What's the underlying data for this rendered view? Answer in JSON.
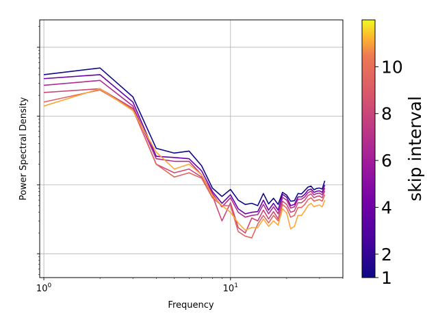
{
  "chart_data": {
    "type": "line",
    "title": "",
    "xlabel": "Frequency",
    "ylabel": "Power Spectral Density",
    "xscale": "log",
    "yscale": "log",
    "xlim": [
      0.95,
      40
    ],
    "ylim": [
      0.0045,
      25
    ],
    "x_tick_labels": [
      {
        "value": 1,
        "base": "10",
        "exp": "0"
      },
      {
        "value": 10,
        "base": "10",
        "exp": "1"
      }
    ],
    "grid": true,
    "colormap": "plasma",
    "colorbar": {
      "label": "skip interval",
      "min": 1,
      "max": 12,
      "ticks": [
        "1",
        "2",
        "4",
        "6",
        "8",
        "10"
      ]
    },
    "x": [
      1,
      2,
      3,
      4,
      5,
      6,
      7,
      8,
      9,
      10,
      11,
      12,
      13,
      14,
      15,
      16,
      17,
      18,
      19,
      20,
      21,
      22,
      23,
      24,
      25,
      26,
      27,
      28,
      29,
      30,
      31,
      32
    ],
    "series": [
      {
        "color": "#0d0887",
        "values": [
          4.0,
          5.0,
          1.9,
          0.34,
          0.29,
          0.31,
          0.19,
          0.09,
          0.068,
          0.086,
          0.06,
          0.052,
          0.054,
          0.05,
          0.075,
          0.053,
          0.064,
          0.052,
          0.078,
          0.071,
          0.058,
          0.059,
          0.075,
          0.074,
          0.083,
          0.093,
          0.096,
          0.085,
          0.089,
          0.09,
          0.087,
          0.115
        ]
      },
      {
        "color": "#6a00a8",
        "values": [
          3.5,
          4.0,
          1.6,
          0.26,
          0.25,
          0.24,
          0.16,
          0.08,
          0.054,
          0.072,
          0.045,
          0.038,
          0.04,
          0.041,
          0.06,
          0.043,
          0.054,
          0.043,
          0.073,
          0.066,
          0.05,
          0.052,
          0.067,
          0.067,
          0.073,
          0.084,
          0.087,
          0.078,
          0.081,
          0.082,
          0.078,
          0.1
        ]
      },
      {
        "color": "#b12a90",
        "values": [
          2.8,
          3.3,
          1.4,
          0.24,
          0.22,
          0.22,
          0.14,
          0.075,
          0.048,
          0.065,
          0.04,
          0.034,
          0.036,
          0.037,
          0.052,
          0.038,
          0.048,
          0.038,
          0.066,
          0.06,
          0.046,
          0.048,
          0.062,
          0.062,
          0.067,
          0.077,
          0.081,
          0.072,
          0.075,
          0.076,
          0.072,
          0.09
        ]
      },
      {
        "color": "#cc4778",
        "values": [
          2.2,
          2.5,
          1.3,
          0.2,
          0.15,
          0.17,
          0.13,
          0.07,
          0.03,
          0.055,
          0.024,
          0.02,
          0.033,
          0.03,
          0.043,
          0.032,
          0.041,
          0.032,
          0.058,
          0.052,
          0.04,
          0.042,
          0.055,
          0.055,
          0.06,
          0.07,
          0.074,
          0.065,
          0.068,
          0.069,
          0.065,
          0.082
        ]
      },
      {
        "color": "#e16462",
        "values": [
          1.6,
          2.4,
          1.25,
          0.2,
          0.13,
          0.15,
          0.125,
          0.065,
          0.05,
          0.05,
          0.021,
          0.018,
          0.017,
          0.027,
          0.036,
          0.028,
          0.036,
          0.03,
          0.052,
          0.046,
          0.034,
          0.036,
          0.047,
          0.047,
          0.052,
          0.061,
          0.065,
          0.058,
          0.06,
          0.061,
          0.058,
          0.072
        ]
      },
      {
        "color": "#fca636",
        "values": [
          1.4,
          2.5,
          1.2,
          0.3,
          0.17,
          0.2,
          0.14,
          0.07,
          0.05,
          0.04,
          0.028,
          0.022,
          0.024,
          0.024,
          0.032,
          0.025,
          0.03,
          0.026,
          0.045,
          0.039,
          0.023,
          0.025,
          0.036,
          0.036,
          0.042,
          0.05,
          0.054,
          0.048,
          0.05,
          0.051,
          0.048,
          0.06
        ]
      }
    ]
  }
}
